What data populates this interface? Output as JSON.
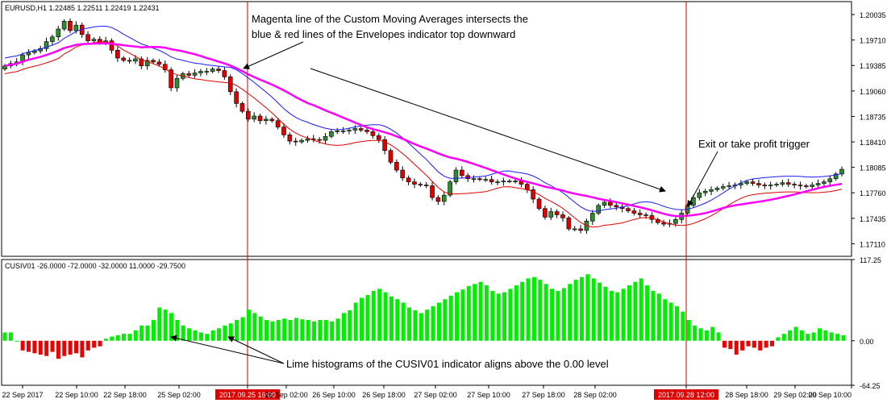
{
  "main_panel": {
    "symbol_label": "EURUSD,H1  1.22485  1.22511  1.22419  1.22431",
    "price_ticks": [
      "1.20035",
      "1.19710",
      "1.19385",
      "1.19060",
      "1.18735",
      "1.18410",
      "1.18085",
      "1.17760",
      "1.17435",
      "1.17110"
    ],
    "annotations": {
      "top_line1": "Magenta line of the Custom Moving Averages intersects the",
      "top_line2": "blue & red lines of the Envelopes indicator top downward",
      "exit": "Exit or take profit trigger"
    }
  },
  "sub_panel": {
    "indicator_label": "CUSIV01 -26.0000 -72.0000 -32.0000 11.0000 -29.7500",
    "value_ticks": [
      "117.25",
      "0.00",
      "-64.25"
    ],
    "annotation": "Lime histograms of the CUSIV01 indicator aligns above the 0.00 level"
  },
  "time_axis": {
    "labels": [
      "22 Sep 2017",
      "22 Sep 10:00",
      "22 Sep 18:00",
      "25 Sep 02:00",
      "2017.09.25 16:00",
      "26 Sep 02:00",
      "26 Sep 10:00",
      "26 Sep 18:00",
      "27 Sep 02:00",
      "27 Sep 10:00",
      "27 Sep 18:00",
      "28 Sep 02:00",
      "2017.09.28 12:00",
      "28 Sep 18:00",
      "29 Sep 02:00",
      "29 Sep 10:00"
    ],
    "highlight_labels": [
      "2017.09.25 16:00",
      "2017.09.28 12:00"
    ]
  },
  "colors": {
    "bull_candle": "#2e8b2e",
    "bear_candle": "#e00000",
    "envelope_upper": "#1a1aff",
    "envelope_lower": "#e00000",
    "custom_ma": "#ff00ff",
    "hist_positive": "#00ee00",
    "hist_negative": "#ee0000",
    "vertical_marker": "#cc0000",
    "highlight_label_bg": "#dd0000"
  },
  "chart_data": [
    {
      "type": "candlestick",
      "title": "EURUSD,H1",
      "ylim": [
        1.1695,
        1.202
      ],
      "series": [
        {
          "name": "Envelopes upper",
          "values": []
        },
        {
          "name": "Envelopes lower",
          "values": []
        },
        {
          "name": "Custom Moving Averages",
          "values": []
        }
      ],
      "close_values": [
        1.1938,
        1.1941,
        1.1943,
        1.1952,
        1.1955,
        1.1957,
        1.196,
        1.1969,
        1.1975,
        1.1985,
        1.1995,
        1.1983,
        1.199,
        1.1978,
        1.197,
        1.1972,
        1.1968,
        1.197,
        1.1958,
        1.1948,
        1.1945,
        1.1944,
        1.1947,
        1.1938,
        1.1945,
        1.1943,
        1.194,
        1.1933,
        1.191,
        1.1922,
        1.1928,
        1.1926,
        1.1929,
        1.1931,
        1.1931,
        1.1934,
        1.1932,
        1.1924,
        1.1905,
        1.189,
        1.188,
        1.187,
        1.1874,
        1.1868,
        1.187,
        1.1868,
        1.186,
        1.185,
        1.1842,
        1.1841,
        1.1843,
        1.1845,
        1.1844,
        1.1843,
        1.1848,
        1.1854,
        1.1855,
        1.1855,
        1.1856,
        1.1858,
        1.1856,
        1.1854,
        1.1849,
        1.1844,
        1.183,
        1.1815,
        1.1805,
        1.1795,
        1.179,
        1.1787,
        1.1786,
        1.1785,
        1.177,
        1.1765,
        1.1773,
        1.179,
        1.1805,
        1.1798,
        1.1794,
        1.1794,
        1.1793,
        1.1793,
        1.179,
        1.179,
        1.1791,
        1.1791,
        1.1791,
        1.1787,
        1.178,
        1.1768,
        1.1756,
        1.1745,
        1.1752,
        1.1748,
        1.1744,
        1.173,
        1.173,
        1.1728,
        1.174,
        1.175,
        1.176,
        1.1764,
        1.176,
        1.1758,
        1.1756,
        1.1753,
        1.175,
        1.1748,
        1.1747,
        1.1742,
        1.1738,
        1.1736,
        1.1737,
        1.1742,
        1.175,
        1.176,
        1.177,
        1.1776,
        1.1778,
        1.178,
        1.1782,
        1.1784,
        1.1785,
        1.1786,
        1.1788,
        1.179,
        1.1788,
        1.1786,
        1.1785,
        1.1786,
        1.1787,
        1.1789,
        1.1787,
        1.1786,
        1.1785,
        1.1784,
        1.1786,
        1.1788,
        1.179,
        1.1794,
        1.18,
        1.1806
      ],
      "notes": "Price candles with Envelopes (blue/red) and Custom Moving Averages (magenta)."
    },
    {
      "type": "bar",
      "title": "CUSIV01",
      "ylim": [
        -64.25,
        117.25
      ],
      "values": [
        12,
        12,
        0,
        -14,
        -16,
        -18,
        -20,
        -22,
        -16,
        -26,
        -22,
        -20,
        -18,
        -24,
        -14,
        -10,
        -8,
        3,
        6,
        8,
        10,
        10,
        15,
        22,
        22,
        30,
        48,
        45,
        40,
        30,
        22,
        18,
        15,
        12,
        10,
        15,
        18,
        22,
        25,
        30,
        34,
        45,
        40,
        35,
        30,
        28,
        30,
        32,
        30,
        33,
        31,
        30,
        28,
        30,
        30,
        28,
        32,
        40,
        44,
        55,
        62,
        66,
        72,
        75,
        70,
        64,
        60,
        55,
        48,
        44,
        40,
        45,
        50,
        55,
        60,
        65,
        70,
        74,
        79,
        82,
        85,
        80,
        72,
        68,
        70,
        75,
        80,
        85,
        90,
        92,
        88,
        82,
        75,
        72,
        76,
        82,
        88,
        92,
        96,
        90,
        84,
        78,
        72,
        70,
        75,
        80,
        85,
        90,
        80,
        72,
        68,
        60,
        55,
        50,
        42,
        30,
        22,
        18,
        15,
        20,
        12,
        -10,
        -12,
        -20,
        -14,
        -8,
        -10,
        -14,
        -10,
        -8,
        5,
        10,
        15,
        20,
        15,
        10,
        12,
        18,
        15,
        12,
        10,
        8
      ],
      "notes": "Lime columns above 0.00 in the highlighted window."
    }
  ]
}
